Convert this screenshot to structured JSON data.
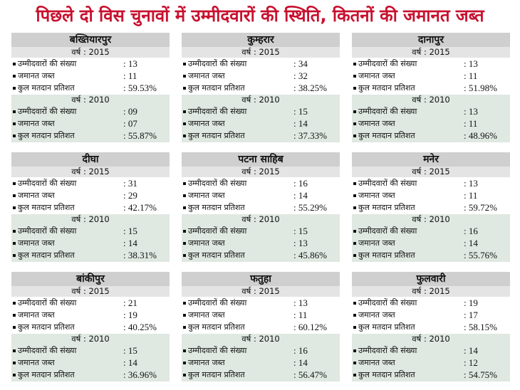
{
  "header": {
    "title": "पिछले दो विस चुनावों में उम्मीदवारों की स्थिति, कितनों की जमानत जब्त"
  },
  "panels": [
    {
      "name": "बख्तियारपुर",
      "blocks": [
        {
          "year": "वर्ष : 2015",
          "rows": [
            [
              "उम्मीदवारों की संख्या",
              ": 13"
            ],
            [
              "जमानत जब्त",
              ": 11"
            ],
            [
              "कुल मतदान प्रतिशत",
              ": 59.53%"
            ]
          ]
        },
        {
          "year": "वर्ष : 2010",
          "rows": [
            [
              "उम्मीदवारों की संख्या",
              ": 09"
            ],
            [
              "जमानत जब्त",
              ": 07"
            ],
            [
              "कुल मतदान प्रतिशत",
              ": 55.87%"
            ]
          ]
        }
      ]
    },
    {
      "name": "कुम्हरार",
      "blocks": [
        {
          "year": "वर्ष : 2015",
          "rows": [
            [
              "उम्मीदवारों की संख्या",
              ": 34"
            ],
            [
              "जमानत जब्त",
              ": 32"
            ],
            [
              "कुल मतदान प्रतिशत",
              ": 38.25%"
            ]
          ]
        },
        {
          "year": "वर्ष : 2010",
          "rows": [
            [
              "उम्मीदवारों की संख्या",
              ": 15"
            ],
            [
              "जमानत जब्त",
              ": 14"
            ],
            [
              "कुल मतदान प्रतिशत",
              ": 37.33%"
            ]
          ]
        }
      ]
    },
    {
      "name": "दानापुर",
      "blocks": [
        {
          "year": "वर्ष : 2015",
          "rows": [
            [
              "उम्मीदवारों की संख्या",
              ": 13"
            ],
            [
              "जमानत जब्त",
              ": 11"
            ],
            [
              "कुल मतदान प्रतिशत",
              ": 51.98%"
            ]
          ]
        },
        {
          "year": "वर्ष : 2010",
          "rows": [
            [
              "उम्मीदवारों की संख्या",
              ": 13"
            ],
            [
              "जमानत जब्त",
              ": 11"
            ],
            [
              "कुल मतदान प्रतिशत",
              ": 48.96%"
            ]
          ]
        }
      ]
    },
    {
      "name": "दीघा",
      "blocks": [
        {
          "year": "वर्ष : 2015",
          "rows": [
            [
              "उम्मीदवारों की संख्या",
              ": 31"
            ],
            [
              "जमानत जब्त",
              ": 29"
            ],
            [
              "कुल मतदान प्रतिशत",
              ": 42.17%"
            ]
          ]
        },
        {
          "year": "वर्ष : 2010",
          "rows": [
            [
              "उम्मीदवारों की संख्या",
              ": 15"
            ],
            [
              "जमानत जब्त",
              ": 14"
            ],
            [
              "कुल मतदान प्रतिशत",
              ": 38.31%"
            ]
          ]
        }
      ]
    },
    {
      "name": "पटना साहिब",
      "blocks": [
        {
          "year": "वर्ष : 2015",
          "rows": [
            [
              "उम्मीदवारों की संख्या",
              ": 16"
            ],
            [
              "जमानत जब्त",
              ": 14"
            ],
            [
              "कुल मतदान प्रतिशत",
              ": 55.29%"
            ]
          ]
        },
        {
          "year": "वर्ष : 2010",
          "rows": [
            [
              "उम्मीदवारों की संख्या",
              ": 15"
            ],
            [
              "जमानत जब्त",
              ": 13"
            ],
            [
              "कुल मतदान प्रतिशत",
              ": 45.86%"
            ]
          ]
        }
      ]
    },
    {
      "name": "मनेर",
      "blocks": [
        {
          "year": "वर्ष : 2015",
          "rows": [
            [
              "उम्मीदवारों की संख्या",
              ": 13"
            ],
            [
              "जमानत जब्त",
              ": 11"
            ],
            [
              "कुल मतदान प्रतिशत",
              ": 59.72%"
            ]
          ]
        },
        {
          "year": "वर्ष : 2010",
          "rows": [
            [
              "उम्मीदवारों की संख्या",
              ": 16"
            ],
            [
              "जमानत जब्त",
              ": 14"
            ],
            [
              "कुल मतदान प्रतिशत",
              ": 55.76%"
            ]
          ]
        }
      ]
    },
    {
      "name": "बांकीपुर",
      "blocks": [
        {
          "year": "वर्ष : 2015",
          "rows": [
            [
              "उम्मीदवारों की संख्या",
              ": 21"
            ],
            [
              "जमानत जब्त",
              ": 19"
            ],
            [
              "कुल मतदान प्रतिशत",
              ": 40.25%"
            ]
          ]
        },
        {
          "year": "वर्ष : 2010",
          "rows": [
            [
              "उम्मीदवारों की संख्या",
              ": 15"
            ],
            [
              "जमानत जब्त",
              ": 14"
            ],
            [
              "कुल मतदान प्रतिशत",
              ": 36.96%"
            ]
          ]
        }
      ]
    },
    {
      "name": "फतुहा",
      "blocks": [
        {
          "year": "वर्ष : 2015",
          "rows": [
            [
              "उम्मीदवारों की संख्या",
              ": 13"
            ],
            [
              "जमानत जब्त",
              ": 11"
            ],
            [
              "कुल मतदान प्रतिशत",
              ": 60.12%"
            ]
          ]
        },
        {
          "year": "वर्ष : 2010",
          "rows": [
            [
              "उम्मीदवारों की संख्या",
              ": 16"
            ],
            [
              "जमानत जब्त",
              ": 14"
            ],
            [
              "कुल मतदान प्रतिशत",
              ": 56.47%"
            ]
          ]
        }
      ]
    },
    {
      "name": "फुलवारी",
      "blocks": [
        {
          "year": "वर्ष : 2015",
          "rows": [
            [
              "उम्मीदवारों की संख्या",
              ": 19"
            ],
            [
              "जमानत जब्त",
              ": 17"
            ],
            [
              "कुल मतदान प्रतिशत",
              ": 58.15%"
            ]
          ]
        },
        {
          "year": "वर्ष : 2010",
          "rows": [
            [
              "उम्मीदवारों की संख्या",
              ": 14"
            ],
            [
              "जमानत जब्त",
              ": 12"
            ],
            [
              "कुल मतदान प्रतिशत",
              ": 54.75%"
            ]
          ]
        }
      ]
    }
  ]
}
